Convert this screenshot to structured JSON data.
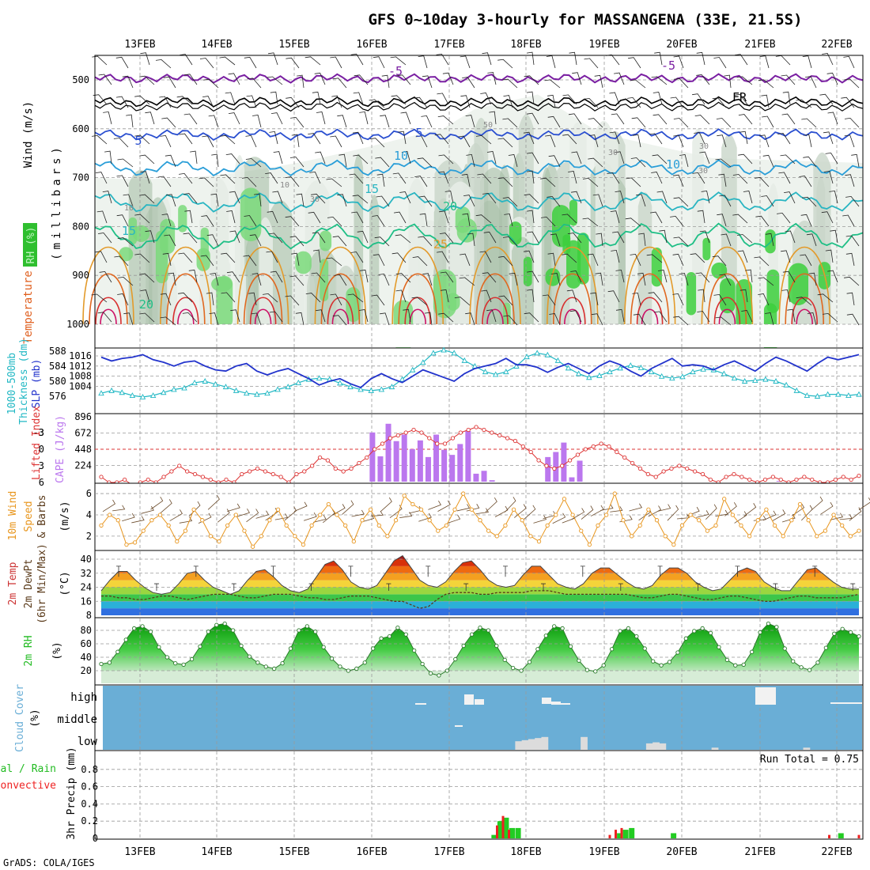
{
  "title": "GFS 0~10day 3-hourly for MASSANGENA (33E, 21.5S)",
  "footer": "GrADS: COLA/IGES",
  "dates": [
    "13FEB",
    "14FEB",
    "15FEB",
    "16FEB",
    "17FEB",
    "18FEB",
    "19FEB",
    "20FEB",
    "21FEB",
    "22FEB"
  ],
  "colors": {
    "slp": "#2233cc",
    "thick": "#22b8c4",
    "li": "#dd3333",
    "cape": "#bb77ee",
    "wind10": "#e8961e",
    "rh_green": "#22bb22",
    "cloud_blue": "#6aaed6",
    "precip_green": "#22cc22",
    "precip_red": "#ee2222",
    "purple": "#7a1fa2"
  },
  "panels": {
    "upper": {
      "lines": [
        "Wind (m/s)",
        "Temperature (°C)",
        "RH (%)"
      ],
      "axis": "(millibars)",
      "ticks": [
        "500",
        "600",
        "700",
        "800",
        "900",
        "1000"
      ],
      "contour_labels": [
        "-5",
        "-5",
        "FR",
        "5",
        "5",
        "10",
        "10",
        "15",
        "15",
        "20",
        "20",
        "25",
        "50",
        "30",
        "30",
        "30",
        "10",
        "30",
        "10"
      ]
    },
    "slp": {
      "label": "SLP (mb)",
      "label2": "1000-500mb",
      "label3": "Thickness (dm)",
      "left_ticks": [
        "588",
        "584",
        "580",
        "576"
      ],
      "right_ticks": [
        "1016",
        "1012",
        "1008",
        "1004"
      ]
    },
    "cape": {
      "label": "CAPE (J/kg)",
      "label2": "Lifted Index",
      "left_ticks": [
        "-3",
        "-3",
        "0",
        "3",
        "6"
      ],
      "right_ticks": [
        "896",
        "672",
        "448",
        "224"
      ]
    },
    "wind10": {
      "label": "10m Wind",
      "label2": "Speed",
      "label3": "& Barbs",
      "unit": "(m/s)",
      "ticks": [
        "6",
        "4",
        "2"
      ]
    },
    "temp2m": {
      "label": "2m Temp",
      "label2": "2m DewPt",
      "label3": "(6hr Min/Max)",
      "unit": "(°C)",
      "ticks": [
        "40",
        "32",
        "24",
        "16",
        "8"
      ]
    },
    "rh2m": {
      "label": "2m RH",
      "unit": "(%)",
      "ticks": [
        "80",
        "60",
        "40",
        "20"
      ]
    },
    "cloud": {
      "label": "Cloud Cover",
      "unit": "(%)",
      "levels": [
        "high",
        "middle",
        "low"
      ]
    },
    "precip": {
      "label": "3hr Precip (mm)",
      "label2": "Total / Rain",
      "label3": "Convective",
      "run_total": "Run Total = 0.75",
      "ticks": [
        "0.8",
        "0.6",
        "0.4",
        "0.2",
        "0"
      ]
    }
  },
  "chart_data": [
    {
      "type": "line",
      "name": "SLP (mb)",
      "unit": "mb",
      "ylim": [
        1002,
        1018
      ],
      "values": [
        1015.5,
        1014,
        1015,
        1015.5,
        1016.5,
        1014.5,
        1013.5,
        1012,
        1013.5,
        1014,
        1012,
        1010.5,
        1010,
        1012,
        1013,
        1010,
        1008.5,
        1010,
        1011,
        1009,
        1007,
        1004.5,
        1006,
        1007,
        1005,
        1003.5,
        1007,
        1009,
        1007,
        1005.5,
        1008,
        1010.5,
        1009,
        1007.5,
        1006,
        1009,
        1011,
        1012,
        1013,
        1015,
        1012.5,
        1012.5,
        1011.5,
        1009.5,
        1011.5,
        1013,
        1011,
        1009,
        1012,
        1014,
        1012.5,
        1010,
        1008,
        1011,
        1013,
        1015,
        1012,
        1012.5,
        1012,
        1010.5,
        1012.5,
        1014,
        1012,
        1010,
        1013,
        1015.5,
        1014,
        1012,
        1010,
        1013,
        1015.5,
        1014.5,
        1015.5,
        1016.5
      ]
    },
    {
      "type": "line",
      "name": "1000-500mb Thickness (dm)",
      "unit": "dm",
      "ylim": [
        574,
        590
      ],
      "values": [
        576.8,
        577.5,
        577,
        576.2,
        575.8,
        576.2,
        577,
        577.8,
        578.2,
        579.6,
        580,
        579.2,
        578.5,
        577.5,
        576.8,
        576.5,
        576.8,
        577.8,
        578.5,
        579.6,
        580.5,
        580.8,
        580.5,
        579.5,
        578.5,
        577.8,
        577.5,
        577.8,
        578.5,
        580.5,
        583,
        585,
        587.5,
        588.3,
        587.5,
        585.5,
        584,
        582.5,
        581.8,
        582.5,
        584,
        586.5,
        587.5,
        587,
        585.5,
        583.5,
        582,
        581,
        581.5,
        582.5,
        583.5,
        584.2,
        583.6,
        582.5,
        581.3,
        580.8,
        581.2,
        582.5,
        583.2,
        583,
        582,
        580.8,
        580,
        580.2,
        580.5,
        580,
        579,
        577.5,
        576.2,
        576,
        576.5,
        576.5,
        576.2,
        576.5
      ]
    },
    {
      "type": "bar",
      "name": "CAPE (J/kg)",
      "unit": "J/kg",
      "ylim": [
        0,
        896
      ],
      "values": [
        0,
        0,
        0,
        0,
        0,
        0,
        0,
        0,
        0,
        0,
        0,
        0,
        0,
        0,
        0,
        0,
        0,
        0,
        0,
        0,
        0,
        0,
        0,
        0,
        0,
        0,
        0,
        0,
        0,
        0,
        0,
        0,
        0,
        0,
        680,
        350,
        800,
        560,
        650,
        450,
        570,
        340,
        650,
        440,
        370,
        520,
        700,
        110,
        150,
        20,
        0,
        0,
        0,
        0,
        0,
        0,
        340,
        410,
        540,
        60,
        290,
        0,
        0,
        0,
        0,
        0,
        0,
        0,
        0,
        0,
        0,
        0,
        0,
        0,
        0,
        0,
        0,
        0,
        0,
        0,
        0,
        0,
        0,
        0,
        0,
        10,
        0,
        0,
        0,
        0,
        0,
        0,
        0,
        0,
        0,
        0
      ]
    },
    {
      "type": "line",
      "name": "Lifted Index",
      "unit": "",
      "ylim": [
        6,
        -6
      ],
      "values": [
        5,
        6,
        6,
        5.5,
        6.5,
        6,
        5.5,
        6,
        5,
        4,
        3,
        4,
        4.5,
        5,
        5.5,
        6,
        5.5,
        6,
        4.5,
        4,
        3.5,
        4,
        4.5,
        5,
        6,
        4.5,
        4,
        3,
        1.5,
        2,
        3.5,
        4,
        3.5,
        2.5,
        1.5,
        0,
        -1,
        -2,
        -2.5,
        -3,
        -3.5,
        -3,
        -2,
        -1,
        -1,
        -2,
        -3,
        -3.5,
        -4,
        -3.5,
        -3,
        -2.5,
        -2,
        -1.5,
        -0.5,
        0.5,
        2,
        3,
        3.5,
        3,
        2,
        1,
        0,
        -0.5,
        -1,
        -0.5,
        0.5,
        1.5,
        2.5,
        3.5,
        4.5,
        5,
        4,
        3.5,
        3,
        3.5,
        4,
        4.5,
        5.5,
        6,
        5,
        4.5,
        5,
        5.5,
        6,
        5.5,
        5,
        5.5,
        6,
        5.5,
        5,
        5.5,
        6,
        6,
        5.5,
        5,
        5.5,
        4.8
      ]
    },
    {
      "type": "line",
      "name": "10m Wind Speed (m/s)",
      "unit": "m/s",
      "ylim": [
        0.8,
        6.6
      ],
      "values": [
        3,
        4,
        3.5,
        1.2,
        1.4,
        2.5,
        3.5,
        4,
        3,
        1.5,
        2.5,
        4.5,
        3.5,
        2,
        1.5,
        3,
        4,
        2.5,
        1,
        2,
        3.5,
        4.5,
        3,
        2,
        1.2,
        3,
        4,
        5,
        4,
        3,
        1.5,
        3.5,
        4.5,
        3,
        2,
        3.5,
        5.8,
        5,
        4.5,
        3.5,
        2.5,
        3,
        4.5,
        6,
        4.5,
        3.5,
        2.5,
        2,
        3,
        4.5,
        3.5,
        2,
        1.5,
        3,
        4,
        5.5,
        4,
        2.5,
        1.2,
        3,
        4,
        6,
        3.5,
        2,
        3,
        4.5,
        3.5,
        2,
        1.2,
        3,
        4,
        3.5,
        2.5,
        3,
        5.5,
        4,
        3,
        2,
        3.5,
        4.5,
        3,
        2,
        3.5,
        5,
        3.5,
        2,
        2.5,
        4,
        3,
        2,
        2.5
      ]
    },
    {
      "type": "area",
      "name": "2m Temp (°C)",
      "unit": "°C",
      "ylim": [
        8,
        44
      ],
      "values": [
        22,
        28,
        33,
        33,
        28,
        24,
        21,
        20,
        21,
        26,
        32,
        33,
        28,
        24,
        22,
        20,
        22,
        28,
        33,
        34,
        30,
        25,
        22,
        21,
        23,
        30,
        37,
        39,
        34,
        27,
        24,
        23,
        25,
        32,
        39,
        42,
        35,
        28,
        25,
        24,
        27,
        33,
        38,
        39,
        34,
        28,
        25,
        24,
        25,
        31,
        36,
        36,
        31,
        26,
        24,
        23,
        26,
        32,
        35,
        35,
        31,
        27,
        24,
        23,
        25,
        31,
        35,
        35,
        32,
        27,
        24,
        22,
        23,
        28,
        33,
        35,
        33,
        27,
        24,
        22,
        22,
        28,
        34,
        35,
        31,
        27,
        24,
        23,
        23
      ]
    },
    {
      "type": "line",
      "name": "2m DewPt (°C)",
      "unit": "°C",
      "ylim": [
        8,
        44
      ],
      "values": [
        19,
        19,
        18,
        18,
        17,
        17,
        18,
        19,
        19,
        18,
        17,
        18,
        19,
        20,
        20,
        20,
        19,
        18,
        18,
        19,
        20,
        20,
        20,
        19,
        18,
        18,
        17,
        17,
        18,
        19,
        19,
        19,
        18,
        17,
        16,
        16,
        14,
        12,
        13,
        17,
        20,
        21,
        21,
        21,
        20,
        20,
        21,
        21,
        21,
        21,
        22,
        22,
        22,
        21,
        20,
        20,
        20,
        20,
        20,
        20,
        20,
        20,
        19,
        18,
        18,
        19,
        20,
        20,
        19,
        18,
        17,
        17,
        18,
        19,
        19,
        18,
        17,
        16,
        16,
        17,
        18,
        19,
        19,
        18,
        18,
        18,
        18,
        19,
        20
      ]
    },
    {
      "type": "area",
      "name": "2m RH (%)",
      "unit": "%",
      "ylim": [
        10,
        95
      ],
      "values": [
        30,
        32,
        48,
        66,
        83,
        86,
        78,
        55,
        40,
        31,
        29,
        37,
        56,
        78,
        88,
        90,
        80,
        57,
        41,
        32,
        26,
        23,
        31,
        53,
        80,
        86,
        78,
        55,
        38,
        26,
        20,
        23,
        32,
        53,
        68,
        71,
        84,
        74,
        50,
        30,
        16,
        13,
        20,
        37,
        57,
        74,
        84,
        80,
        57,
        36,
        24,
        20,
        33,
        52,
        72,
        86,
        83,
        56,
        35,
        21,
        19,
        28,
        52,
        79,
        83,
        71,
        53,
        34,
        28,
        33,
        47,
        68,
        79,
        83,
        76,
        55,
        36,
        28,
        29,
        48,
        77,
        90,
        85,
        53,
        34,
        25,
        21,
        32,
        54,
        75,
        82,
        77,
        71
      ]
    },
    {
      "type": "bar",
      "name": "Cloud Cover low (%)",
      "unit": "%",
      "ylim": [
        0,
        100
      ],
      "values": [
        0,
        0,
        0,
        0,
        0,
        0,
        0,
        0,
        0,
        0,
        0,
        0,
        0,
        0,
        0,
        0,
        0,
        0,
        0,
        0,
        0,
        0,
        0,
        0,
        0,
        0,
        0,
        0,
        0,
        0,
        0,
        0,
        0,
        0,
        0,
        0,
        0,
        0,
        0,
        0,
        0,
        0,
        0,
        0,
        0,
        0,
        0,
        0,
        0,
        0,
        0,
        0,
        0,
        0,
        0,
        0,
        0,
        0,
        0,
        0,
        0,
        0,
        0,
        40,
        45,
        50,
        55,
        60,
        0,
        0,
        0,
        0,
        0,
        60,
        0,
        0,
        0,
        0,
        0,
        0,
        0,
        0,
        0,
        30,
        35,
        30,
        0,
        0,
        0,
        0,
        0,
        0,
        0,
        10,
        0,
        0,
        0,
        0,
        0,
        0,
        0,
        0,
        0,
        0,
        0,
        0,
        0,
        10,
        0,
        0,
        0,
        0,
        0,
        0,
        0,
        0
      ]
    },
    {
      "type": "bar",
      "name": "3hr Precip Total (mm)",
      "unit": "mm",
      "ylim": [
        0,
        1
      ],
      "values": [
        0,
        0,
        0,
        0,
        0,
        0,
        0,
        0,
        0,
        0,
        0,
        0,
        0,
        0,
        0,
        0,
        0,
        0,
        0,
        0,
        0,
        0,
        0,
        0,
        0,
        0,
        0,
        0,
        0,
        0,
        0,
        0,
        0,
        0,
        0,
        0,
        0,
        0,
        0,
        0,
        0,
        0,
        0,
        0,
        0,
        0,
        0,
        0,
        0,
        0,
        0,
        0,
        0,
        0,
        0,
        0,
        0,
        0,
        0,
        0,
        0,
        0,
        0,
        0,
        0,
        0.04,
        0.2,
        0.24,
        0.12,
        0.12,
        0,
        0,
        0,
        0,
        0,
        0,
        0,
        0,
        0,
        0,
        0,
        0,
        0,
        0,
        0,
        0,
        0.06,
        0.1,
        0.12,
        0,
        0,
        0,
        0,
        0,
        0,
        0.06,
        0,
        0,
        0,
        0,
        0,
        0,
        0,
        0,
        0,
        0,
        0,
        0,
        0,
        0,
        0,
        0,
        0,
        0,
        0,
        0,
        0,
        0,
        0,
        0,
        0,
        0,
        0,
        0.06,
        0,
        0,
        0
      ]
    },
    {
      "type": "bar",
      "name": "3hr Precip Convective (mm)",
      "unit": "mm",
      "ylim": [
        0,
        1
      ],
      "values": [
        0,
        0,
        0,
        0,
        0,
        0,
        0,
        0,
        0,
        0,
        0,
        0,
        0,
        0,
        0,
        0,
        0,
        0,
        0,
        0,
        0,
        0,
        0,
        0,
        0,
        0,
        0,
        0,
        0,
        0,
        0,
        0,
        0,
        0,
        0,
        0,
        0,
        0,
        0,
        0,
        0,
        0,
        0,
        0,
        0,
        0,
        0,
        0,
        0,
        0,
        0,
        0,
        0,
        0,
        0,
        0,
        0,
        0,
        0,
        0,
        0,
        0,
        0,
        0,
        0,
        0,
        0.15,
        0.26,
        0.1,
        0,
        0,
        0,
        0,
        0,
        0,
        0,
        0,
        0,
        0,
        0,
        0,
        0,
        0,
        0,
        0,
        0.04,
        0.1,
        0.12,
        0,
        0,
        0,
        0,
        0,
        0,
        0,
        0,
        0,
        0,
        0,
        0,
        0,
        0,
        0,
        0,
        0,
        0,
        0,
        0,
        0,
        0,
        0,
        0,
        0,
        0,
        0,
        0,
        0,
        0,
        0,
        0,
        0,
        0,
        0.04,
        0,
        0,
        0,
        0,
        0.04
      ]
    }
  ]
}
